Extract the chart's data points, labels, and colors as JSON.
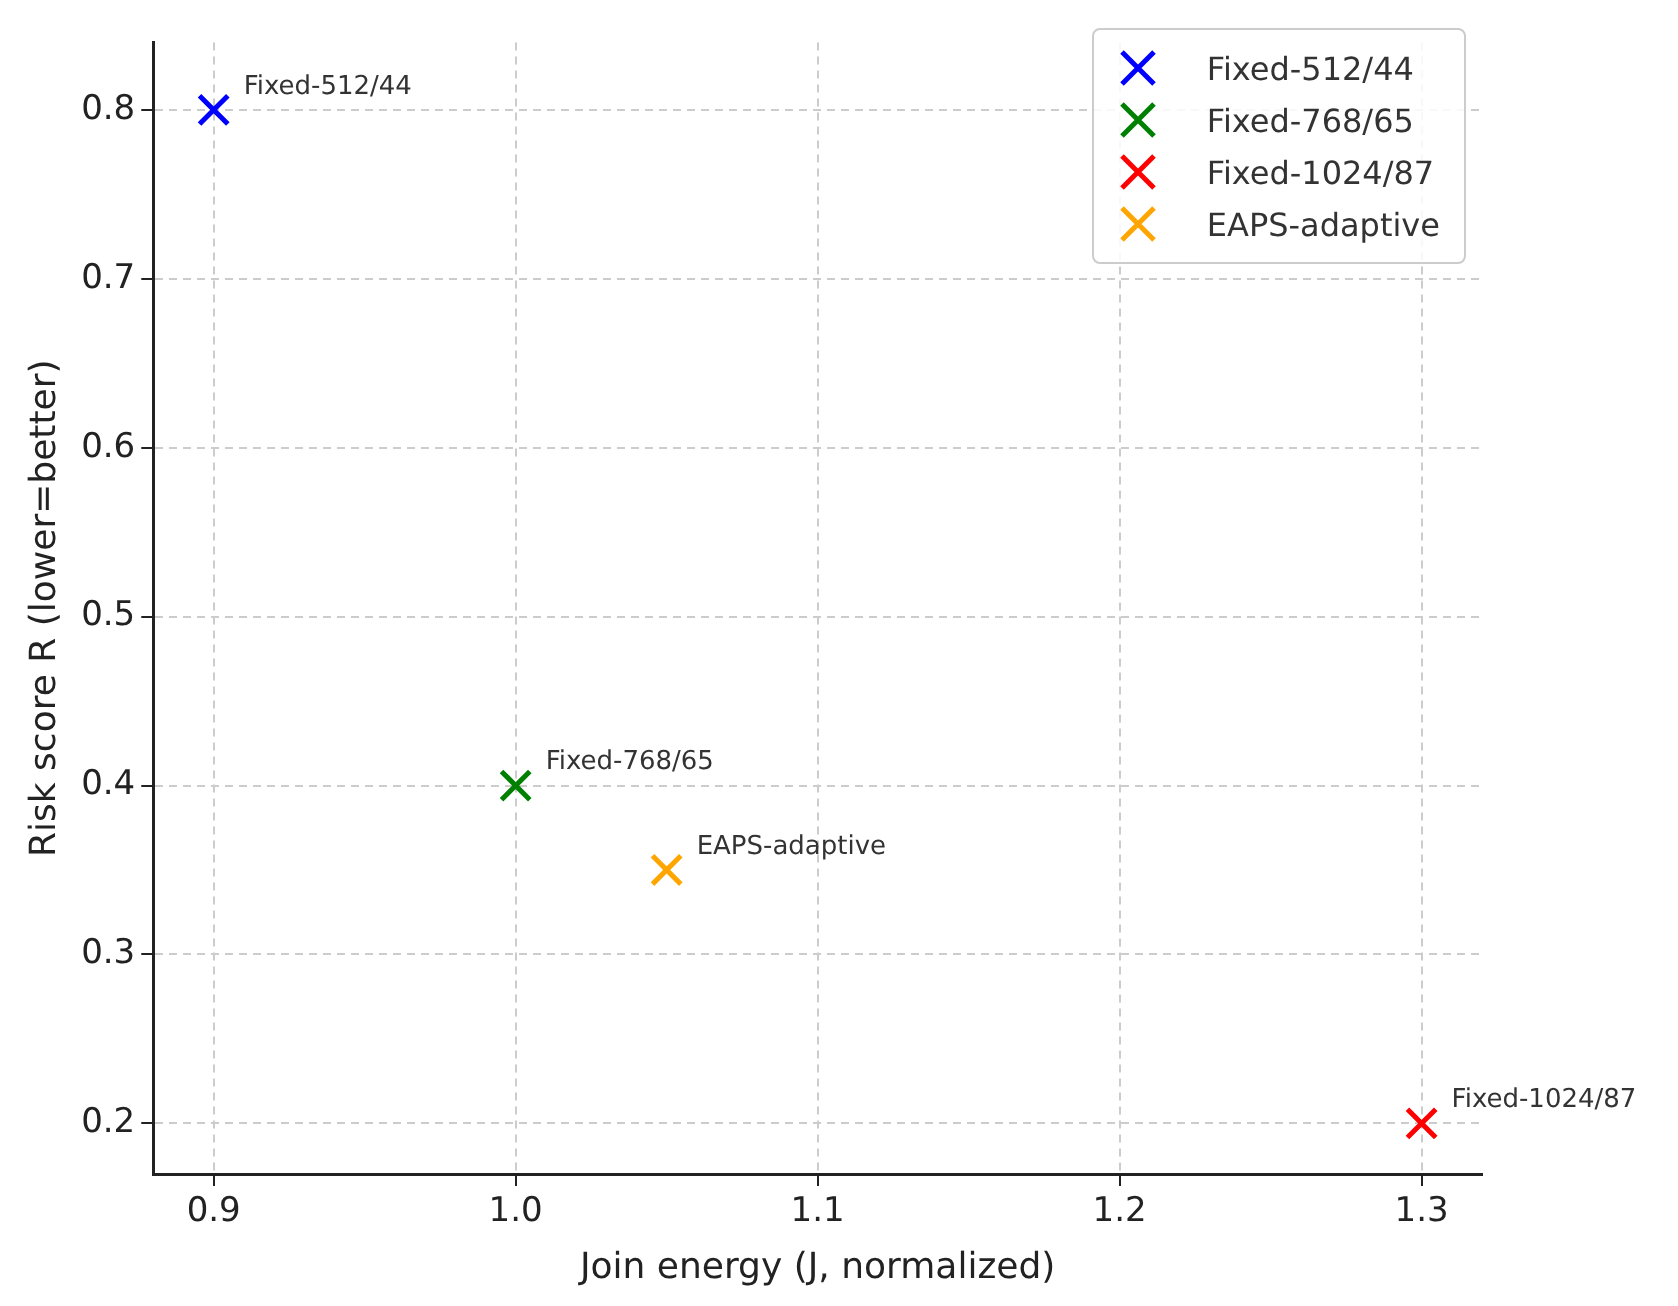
{
  "chart_data": {
    "type": "scatter",
    "xlabel": "Join energy (J, normalized)",
    "ylabel": "Risk score R (lower=better)",
    "series": [
      {
        "name": "Fixed-512/44",
        "color": "#0000ff",
        "x": [
          0.9
        ],
        "values": [
          0.8
        ]
      },
      {
        "name": "Fixed-768/65",
        "color": "#008000",
        "x": [
          1.0
        ],
        "values": [
          0.4
        ]
      },
      {
        "name": "Fixed-1024/87",
        "color": "#ff0000",
        "x": [
          1.3
        ],
        "values": [
          0.2
        ]
      },
      {
        "name": "EAPS-adaptive",
        "color": "#ffa500",
        "x": [
          1.05
        ],
        "values": [
          0.35
        ]
      }
    ],
    "annotations": [
      {
        "text": "Fixed-512/44",
        "x": 0.9,
        "y": 0.8
      },
      {
        "text": "Fixed-768/65",
        "x": 1.0,
        "y": 0.4
      },
      {
        "text": "Fixed-1024/87",
        "x": 1.3,
        "y": 0.2
      },
      {
        "text": "EAPS-adaptive",
        "x": 1.05,
        "y": 0.35
      }
    ],
    "xlim": [
      0.88,
      1.32
    ],
    "xticks": [
      0.9,
      {
        "value": 1,
        "label": "1.0"
      },
      1.1,
      1.2,
      1.3
    ],
    "ylim": [
      0.17,
      0.84
    ],
    "yticks": [
      0.2,
      0.3,
      0.4,
      0.5,
      0.6,
      0.7,
      0.8
    ],
    "grid": true,
    "legend": "top right",
    "marker": "cross"
  }
}
